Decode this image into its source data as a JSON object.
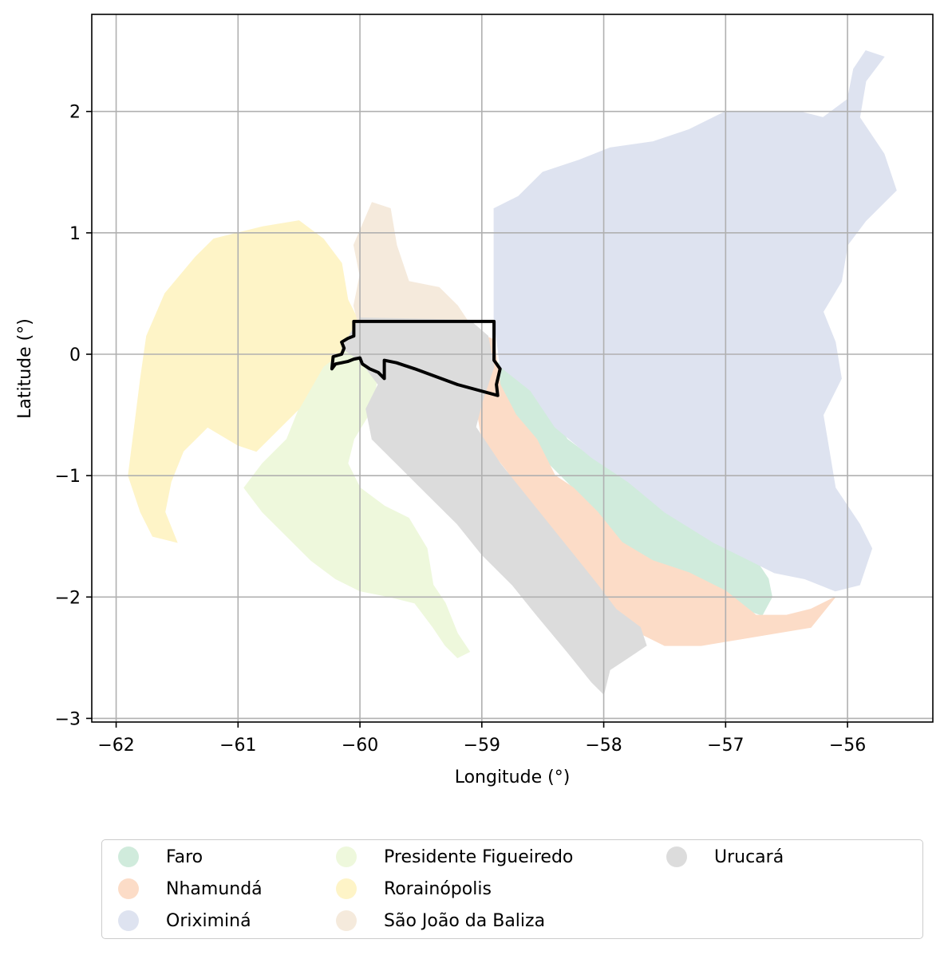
{
  "chart_data": {
    "type": "map",
    "xlabel": "Longitude (°)",
    "ylabel": "Latitude (°)",
    "xlim": [
      -62.2,
      -55.3
    ],
    "ylim": [
      -3.03,
      2.8
    ],
    "xticks": [
      -62,
      -61,
      -60,
      -59,
      -58,
      -57,
      -56
    ],
    "yticks": [
      -3,
      -2,
      -1,
      0,
      1,
      2
    ],
    "xtick_labels": [
      "−62",
      "−61",
      "−60",
      "−59",
      "−58",
      "−57",
      "−56"
    ],
    "ytick_labels": [
      "−3",
      "−2",
      "−1",
      "0",
      "1",
      "2"
    ],
    "grid": true,
    "legend_placement": "bottom-center, below axes",
    "regions": [
      {
        "name": "Faro",
        "color": "#d0ebdc",
        "polygon": [
          [
            -58.95,
            -0.05
          ],
          [
            -58.75,
            -0.1
          ],
          [
            -58.55,
            -0.25
          ],
          [
            -58.45,
            -0.45
          ],
          [
            -58.3,
            -0.7
          ],
          [
            -58.1,
            -0.85
          ],
          [
            -57.8,
            -0.9
          ],
          [
            -57.6,
            -1.05
          ],
          [
            -57.5,
            -1.2
          ],
          [
            -57.2,
            -1.4
          ],
          [
            -57.05,
            -1.55
          ],
          [
            -56.9,
            -1.65
          ],
          [
            -56.75,
            -1.7
          ],
          [
            -56.65,
            -1.85
          ],
          [
            -56.62,
            -2.0
          ],
          [
            -56.7,
            -2.15
          ],
          [
            -56.85,
            -2.1
          ],
          [
            -57.0,
            -1.95
          ],
          [
            -57.3,
            -1.8
          ],
          [
            -57.6,
            -1.7
          ],
          [
            -57.85,
            -1.55
          ],
          [
            -58.05,
            -1.3
          ],
          [
            -58.3,
            -1.05
          ],
          [
            -58.5,
            -0.85
          ],
          [
            -58.75,
            -0.6
          ],
          [
            -58.85,
            -0.35
          ]
        ]
      },
      {
        "name": "Nhamundá",
        "color": "#fcdcc7",
        "polygon": [
          [
            -59.1,
            0.2
          ],
          [
            -58.9,
            0.12
          ],
          [
            -58.85,
            -0.25
          ],
          [
            -58.72,
            -0.5
          ],
          [
            -58.55,
            -0.7
          ],
          [
            -58.4,
            -1.0
          ],
          [
            -58.25,
            -1.1
          ],
          [
            -58.05,
            -1.3
          ],
          [
            -57.85,
            -1.55
          ],
          [
            -57.6,
            -1.7
          ],
          [
            -57.3,
            -1.8
          ],
          [
            -57.0,
            -1.95
          ],
          [
            -56.75,
            -2.15
          ],
          [
            -56.5,
            -2.15
          ],
          [
            -56.3,
            -2.1
          ],
          [
            -56.1,
            -2.0
          ],
          [
            -56.3,
            -2.25
          ],
          [
            -56.6,
            -2.3
          ],
          [
            -56.9,
            -2.35
          ],
          [
            -57.2,
            -2.4
          ],
          [
            -57.5,
            -2.4
          ],
          [
            -57.8,
            -2.25
          ],
          [
            -58.0,
            -2.05
          ],
          [
            -58.2,
            -1.75
          ],
          [
            -58.4,
            -1.5
          ],
          [
            -58.6,
            -1.25
          ],
          [
            -58.8,
            -0.95
          ],
          [
            -59.0,
            -0.7
          ],
          [
            -59.05,
            -0.4
          ],
          [
            -59.1,
            -0.1
          ]
        ]
      },
      {
        "name": "Oriximiná",
        "color": "#dee3f0",
        "polygon": [
          [
            -58.9,
            1.2
          ],
          [
            -58.7,
            1.3
          ],
          [
            -58.5,
            1.5
          ],
          [
            -58.2,
            1.6
          ],
          [
            -57.95,
            1.7
          ],
          [
            -57.6,
            1.75
          ],
          [
            -57.3,
            1.85
          ],
          [
            -57.0,
            2.0
          ],
          [
            -56.7,
            2.0
          ],
          [
            -56.4,
            2.0
          ],
          [
            -56.2,
            1.95
          ],
          [
            -56.0,
            2.1
          ],
          [
            -55.95,
            2.35
          ],
          [
            -55.85,
            2.5
          ],
          [
            -55.7,
            2.45
          ],
          [
            -55.85,
            2.25
          ],
          [
            -55.9,
            1.95
          ],
          [
            -55.7,
            1.65
          ],
          [
            -55.6,
            1.35
          ],
          [
            -55.85,
            1.1
          ],
          [
            -56.0,
            0.9
          ],
          [
            -56.05,
            0.6
          ],
          [
            -56.2,
            0.35
          ],
          [
            -56.1,
            0.1
          ],
          [
            -56.05,
            -0.2
          ],
          [
            -56.2,
            -0.5
          ],
          [
            -56.15,
            -0.8
          ],
          [
            -56.1,
            -1.1
          ],
          [
            -55.9,
            -1.4
          ],
          [
            -55.8,
            -1.6
          ],
          [
            -55.9,
            -1.9
          ],
          [
            -56.1,
            -1.95
          ],
          [
            -56.35,
            -1.85
          ],
          [
            -56.6,
            -1.8
          ],
          [
            -56.8,
            -1.7
          ],
          [
            -57.1,
            -1.55
          ],
          [
            -57.5,
            -1.3
          ],
          [
            -57.8,
            -1.05
          ],
          [
            -58.1,
            -0.85
          ],
          [
            -58.4,
            -0.6
          ],
          [
            -58.6,
            -0.3
          ],
          [
            -58.85,
            -0.1
          ],
          [
            -58.9,
            0.3
          ]
        ]
      },
      {
        "name": "Presidente Figueiredo",
        "color": "#eef8dc",
        "polygon": [
          [
            -60.3,
            -0.1
          ],
          [
            -60.15,
            0.05
          ],
          [
            -60.0,
            0.0
          ],
          [
            -59.85,
            -0.15
          ],
          [
            -59.9,
            -0.45
          ],
          [
            -60.05,
            -0.7
          ],
          [
            -60.1,
            -0.9
          ],
          [
            -60.0,
            -1.1
          ],
          [
            -59.8,
            -1.25
          ],
          [
            -59.6,
            -1.35
          ],
          [
            -59.45,
            -1.6
          ],
          [
            -59.4,
            -1.9
          ],
          [
            -59.3,
            -2.05
          ],
          [
            -59.2,
            -2.3
          ],
          [
            -59.1,
            -2.45
          ],
          [
            -59.2,
            -2.5
          ],
          [
            -59.3,
            -2.4
          ],
          [
            -59.4,
            -2.25
          ],
          [
            -59.55,
            -2.05
          ],
          [
            -59.75,
            -2.0
          ],
          [
            -60.0,
            -1.95
          ],
          [
            -60.2,
            -1.85
          ],
          [
            -60.4,
            -1.7
          ],
          [
            -60.6,
            -1.5
          ],
          [
            -60.8,
            -1.3
          ],
          [
            -60.95,
            -1.1
          ],
          [
            -60.8,
            -0.9
          ],
          [
            -60.6,
            -0.7
          ],
          [
            -60.5,
            -0.45
          ]
        ]
      },
      {
        "name": "Rorainópolis",
        "color": "#fef4c7",
        "polygon": [
          [
            -61.0,
            1.0
          ],
          [
            -60.8,
            1.05
          ],
          [
            -60.5,
            1.1
          ],
          [
            -60.3,
            0.95
          ],
          [
            -60.15,
            0.75
          ],
          [
            -60.1,
            0.45
          ],
          [
            -60.0,
            0.25
          ],
          [
            -60.1,
            0.05
          ],
          [
            -60.3,
            -0.1
          ],
          [
            -60.5,
            -0.45
          ],
          [
            -60.7,
            -0.65
          ],
          [
            -60.85,
            -0.8
          ],
          [
            -61.0,
            -0.75
          ],
          [
            -61.25,
            -0.6
          ],
          [
            -61.45,
            -0.8
          ],
          [
            -61.55,
            -1.05
          ],
          [
            -61.6,
            -1.3
          ],
          [
            -61.5,
            -1.55
          ],
          [
            -61.7,
            -1.5
          ],
          [
            -61.8,
            -1.3
          ],
          [
            -61.9,
            -1.0
          ],
          [
            -61.85,
            -0.6
          ],
          [
            -61.8,
            -0.2
          ],
          [
            -61.75,
            0.15
          ],
          [
            -61.6,
            0.5
          ],
          [
            -61.35,
            0.8
          ],
          [
            -61.2,
            0.95
          ]
        ]
      },
      {
        "name": "São João da Baliza",
        "color": "#f5eadc",
        "polygon": [
          [
            -59.9,
            1.25
          ],
          [
            -59.75,
            1.2
          ],
          [
            -59.7,
            0.9
          ],
          [
            -59.6,
            0.6
          ],
          [
            -59.35,
            0.55
          ],
          [
            -59.2,
            0.4
          ],
          [
            -59.1,
            0.25
          ],
          [
            -59.5,
            0.22
          ],
          [
            -60.0,
            0.2
          ],
          [
            -60.05,
            0.4
          ],
          [
            -60.0,
            0.65
          ],
          [
            -60.05,
            0.9
          ]
        ]
      },
      {
        "name": "Urucará",
        "color": "#dcdcdc",
        "polygon": [
          [
            -60.0,
            0.3
          ],
          [
            -59.1,
            0.28
          ],
          [
            -58.95,
            0.15
          ],
          [
            -58.9,
            -0.1
          ],
          [
            -59.0,
            -0.4
          ],
          [
            -59.05,
            -0.6
          ],
          [
            -58.85,
            -0.9
          ],
          [
            -58.65,
            -1.15
          ],
          [
            -58.45,
            -1.4
          ],
          [
            -58.25,
            -1.65
          ],
          [
            -58.05,
            -1.9
          ],
          [
            -57.9,
            -2.1
          ],
          [
            -57.7,
            -2.25
          ],
          [
            -57.65,
            -2.4
          ],
          [
            -57.8,
            -2.5
          ],
          [
            -57.95,
            -2.6
          ],
          [
            -58.0,
            -2.8
          ],
          [
            -58.1,
            -2.7
          ],
          [
            -58.3,
            -2.45
          ],
          [
            -58.55,
            -2.15
          ],
          [
            -58.75,
            -1.9
          ],
          [
            -59.0,
            -1.65
          ],
          [
            -59.2,
            -1.4
          ],
          [
            -59.4,
            -1.2
          ],
          [
            -59.65,
            -0.95
          ],
          [
            -59.9,
            -0.7
          ],
          [
            -59.95,
            -0.45
          ],
          [
            -59.85,
            -0.25
          ],
          [
            -60.0,
            -0.05
          ],
          [
            -60.15,
            0.05
          ]
        ]
      }
    ],
    "highlight_outline": {
      "color": "#000000",
      "polygon": [
        [
          -60.05,
          0.27
        ],
        [
          -58.9,
          0.27
        ],
        [
          -58.9,
          -0.05
        ],
        [
          -58.85,
          -0.12
        ],
        [
          -58.88,
          -0.25
        ],
        [
          -58.87,
          -0.34
        ],
        [
          -59.2,
          -0.25
        ],
        [
          -59.55,
          -0.12
        ],
        [
          -59.7,
          -0.07
        ],
        [
          -59.8,
          -0.05
        ],
        [
          -59.8,
          -0.2
        ],
        [
          -59.85,
          -0.15
        ],
        [
          -59.92,
          -0.12
        ],
        [
          -59.98,
          -0.08
        ],
        [
          -60.0,
          -0.03
        ],
        [
          -60.05,
          -0.04
        ],
        [
          -60.1,
          -0.06
        ],
        [
          -60.15,
          -0.07
        ],
        [
          -60.2,
          -0.08
        ],
        [
          -60.23,
          -0.12
        ],
        [
          -60.22,
          -0.02
        ],
        [
          -60.15,
          0.0
        ],
        [
          -60.13,
          0.05
        ],
        [
          -60.15,
          0.1
        ],
        [
          -60.1,
          0.13
        ],
        [
          -60.05,
          0.15
        ],
        [
          -60.05,
          0.2
        ]
      ]
    }
  },
  "legend": {
    "items": [
      {
        "label": "Faro",
        "color": "#d0ebdc"
      },
      {
        "label": "Nhamundá",
        "color": "#fcdcc7"
      },
      {
        "label": "Oriximiná",
        "color": "#dee3f0"
      },
      {
        "label": "Presidente Figueiredo",
        "color": "#eef8dc"
      },
      {
        "label": "Rorainópolis",
        "color": "#fef4c7"
      },
      {
        "label": "São João da Baliza",
        "color": "#f5eadc"
      },
      {
        "label": "Urucará",
        "color": "#dcdcdc"
      }
    ]
  }
}
